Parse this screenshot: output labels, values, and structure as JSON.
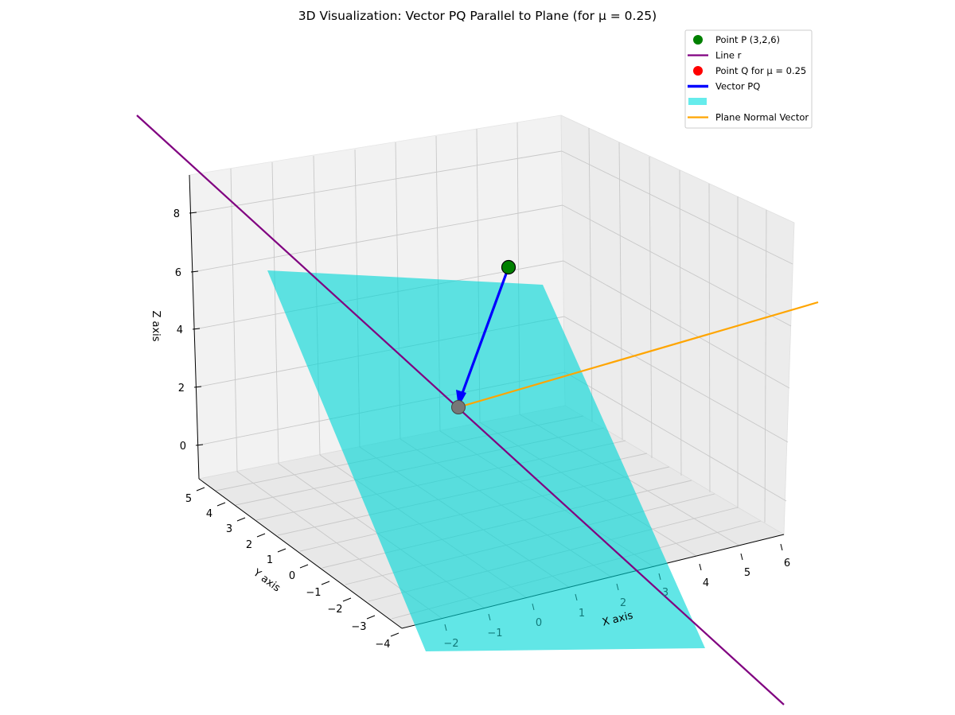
{
  "chart_data": {
    "type": "3d-line",
    "title": "3D Visualization: Vector PQ Parallel to Plane (for μ = 0.25)",
    "xlabel": "X axis",
    "ylabel": "Y axis",
    "zlabel": "Z axis",
    "xlim": [
      -2.5,
      6
    ],
    "ylim": [
      -4,
      5
    ],
    "zlim": [
      -1,
      9
    ],
    "x_ticks": [
      "−2",
      "−1",
      "0",
      "1",
      "2",
      "3",
      "4",
      "5",
      "6"
    ],
    "y_ticks": [
      "5",
      "4",
      "3",
      "2",
      "1",
      "0",
      "−1",
      "−2",
      "−3",
      "−4"
    ],
    "z_ticks": [
      "8",
      "6",
      "4",
      "2",
      "0"
    ],
    "grid": true,
    "legend_position": "top-right",
    "legend": [
      {
        "label": "Point P (3,2,6)",
        "kind": "marker",
        "color": "#008000"
      },
      {
        "label": "Line r",
        "kind": "line",
        "color": "#800080"
      },
      {
        "label": "Point Q for μ = 0.25",
        "kind": "marker",
        "color": "#ff0000"
      },
      {
        "label": "Vector PQ",
        "kind": "thick-line",
        "color": "#0000ff"
      },
      {
        "label": "",
        "kind": "patch",
        "color": "#00e0e0"
      },
      {
        "label": "Plane Normal Vector",
        "kind": "line",
        "color": "#ffa500"
      }
    ],
    "series": [
      {
        "name": "Point P (3,2,6)",
        "kind": "point",
        "color": "#008000",
        "points": [
          [
            3,
            2,
            6
          ]
        ]
      },
      {
        "name": "Line r",
        "kind": "line",
        "color": "#800080"
      },
      {
        "name": "Point Q for μ = 0.25",
        "kind": "point",
        "color": "#ff0000"
      },
      {
        "name": "Vector PQ",
        "kind": "arrow",
        "color": "#0000ff"
      },
      {
        "name": "Plane Normal Vector",
        "kind": "line",
        "color": "#ffa500"
      }
    ]
  }
}
